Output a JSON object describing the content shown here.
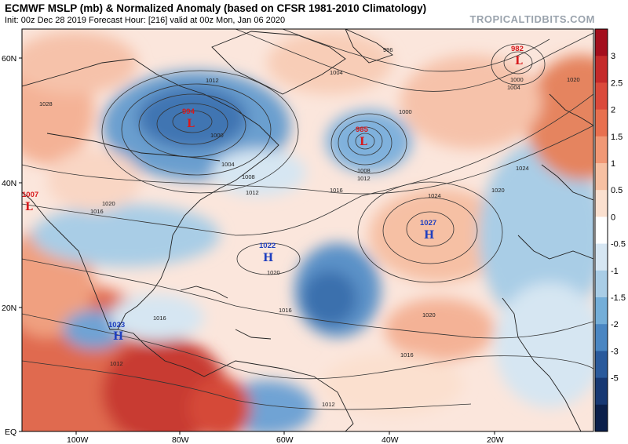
{
  "header": {
    "title": "ECMWF MSLP (mb) & Normalized Anomaly (based on CFSR 1981-2010 Climatology)",
    "subtitle": "Init: 00z Dec 28 2019   Forecast Hour: [216]   valid at 00z Mon, Jan 06 2020",
    "credit": "TROPICALTIDBITS.COM"
  },
  "axes": {
    "lat_labels": [
      "60N",
      "40N",
      "20N",
      "EQ"
    ],
    "lon_labels": [
      "100W",
      "80W",
      "60W",
      "40W",
      "20W"
    ]
  },
  "colorbar": {
    "labels": [
      "3",
      "2.5",
      "2",
      "1.5",
      "1",
      "0.5",
      "0",
      "-0.5",
      "-1",
      "-1.5",
      "-2",
      "-3",
      "-5"
    ],
    "colors": [
      "#a40e1d",
      "#c52a2a",
      "#db4a3b",
      "#e8704f",
      "#f19875",
      "#f7c0a2",
      "#fbe0cf",
      "#ffffff",
      "#d6e6f2",
      "#a9cde6",
      "#74aed8",
      "#4a86c2",
      "#2a5a9c",
      "#173873",
      "#0b1f4a"
    ]
  },
  "pressure_centers": [
    {
      "type": "L",
      "value": "994",
      "color": "#d7191c"
    },
    {
      "type": "L",
      "value": "985",
      "color": "#d7191c"
    },
    {
      "type": "L",
      "value": "982",
      "color": "#d7191c"
    },
    {
      "type": "L",
      "value": "1007",
      "color": "#d7191c"
    },
    {
      "type": "H",
      "value": "1022",
      "color": "#1f3fbf"
    },
    {
      "type": "H",
      "value": "1027",
      "color": "#1f3fbf"
    },
    {
      "type": "H",
      "value": "1023",
      "color": "#1f3fbf"
    }
  ],
  "contour_labels": [
    "996",
    "1000",
    "1004",
    "1008",
    "1012",
    "1016",
    "1020",
    "1024",
    "1028",
    "1012",
    "1000",
    "1004",
    "1008",
    "1012",
    "1016",
    "1020",
    "1020",
    "1024",
    "1016",
    "1016",
    "1016",
    "1020",
    "1012",
    "1012",
    "1000",
    "1004",
    "1020"
  ]
}
